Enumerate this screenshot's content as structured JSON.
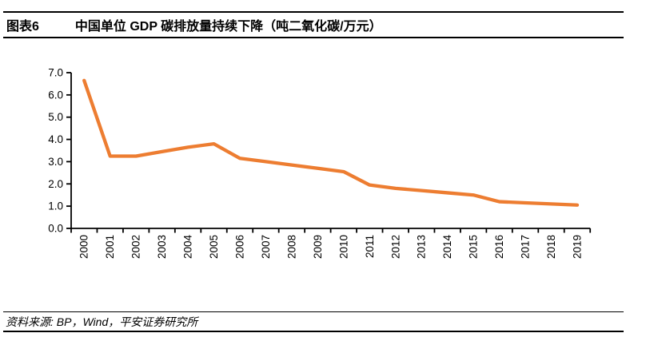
{
  "header": {
    "figure_label": "图表6",
    "title": "中国单位 GDP 碳排放量持续下降（吨二氧化碳/万元）"
  },
  "footer": {
    "source": "资料来源: BP，Wind，平安证券研究所"
  },
  "chart_data": {
    "type": "line",
    "title": "中国单位 GDP 碳排放量持续下降（吨二氧化碳/万元）",
    "unit": "吨二氧化碳/万元",
    "categories": [
      "2000",
      "2001",
      "2002",
      "2003",
      "2004",
      "2005",
      "2006",
      "2007",
      "2008",
      "2009",
      "2010",
      "2011",
      "2012",
      "2013",
      "2014",
      "2015",
      "2016",
      "2017",
      "2018",
      "2019"
    ],
    "values": [
      6.65,
      3.25,
      3.25,
      3.45,
      3.65,
      3.8,
      3.15,
      3.0,
      2.85,
      2.7,
      2.55,
      1.95,
      1.8,
      1.7,
      1.6,
      1.5,
      1.2,
      1.15,
      1.1,
      1.05
    ],
    "ylim": [
      0.0,
      7.0
    ],
    "ytick_labels": [
      "0.0",
      "1.0",
      "2.0",
      "3.0",
      "4.0",
      "5.0",
      "6.0",
      "7.0"
    ],
    "grid": false,
    "legend": "none",
    "line_color": "#ED7D31",
    "axis_color": "#000000"
  }
}
